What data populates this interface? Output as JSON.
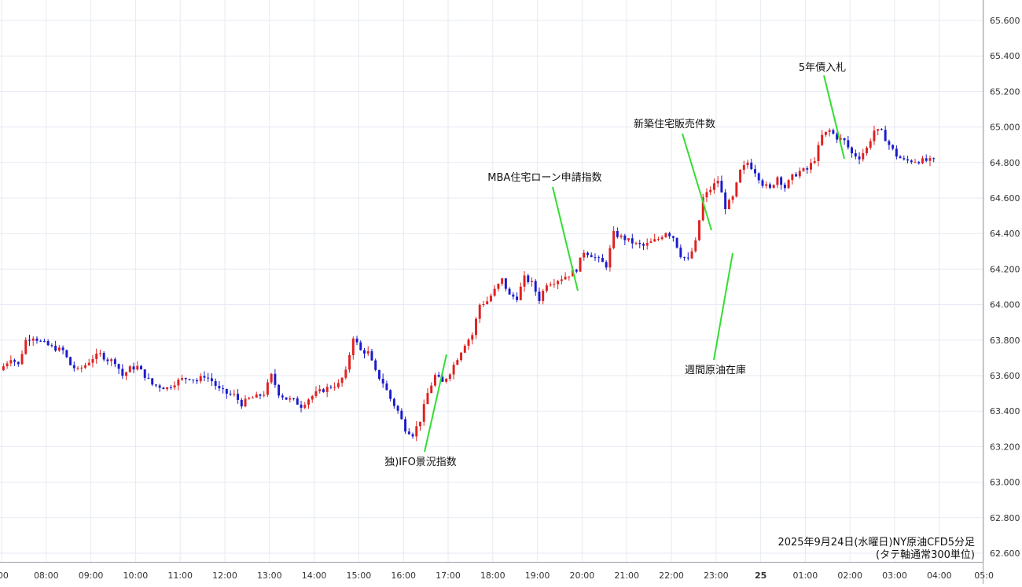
{
  "chart_data": {
    "type": "candlestick",
    "caption_line1": "2025年9月24日(水曜日)NY原油CFD5分足",
    "caption_line2": "(タテ軸通常300単位)",
    "y_axis": {
      "ticks": [
        "65.600",
        "65.400",
        "65.200",
        "65.000",
        "64.800",
        "64.600",
        "64.400",
        "64.200",
        "64.000",
        "63.800",
        "63.600",
        "63.400",
        "63.200",
        "63.000",
        "62.800",
        "62.600"
      ],
      "ylim": [
        62.56,
        65.68
      ],
      "position": "right"
    },
    "x_axis": {
      "ticks": [
        {
          "label": ":00",
          "bold": false
        },
        {
          "label": "08:00",
          "bold": false
        },
        {
          "label": "09:00",
          "bold": false
        },
        {
          "label": "10:00",
          "bold": false
        },
        {
          "label": "11:00",
          "bold": false
        },
        {
          "label": "12:00",
          "bold": false
        },
        {
          "label": "13:00",
          "bold": false
        },
        {
          "label": "14:00",
          "bold": false
        },
        {
          "label": "15:00",
          "bold": false
        },
        {
          "label": "16:00",
          "bold": false
        },
        {
          "label": "17:00",
          "bold": false
        },
        {
          "label": "18:00",
          "bold": false
        },
        {
          "label": "19:00",
          "bold": false
        },
        {
          "label": "20:00",
          "bold": false
        },
        {
          "label": "21:00",
          "bold": false
        },
        {
          "label": "22:00",
          "bold": false
        },
        {
          "label": "23:00",
          "bold": false
        },
        {
          "label": "25",
          "bold": true
        },
        {
          "label": "01:00",
          "bold": false
        },
        {
          "label": "02:00",
          "bold": false
        },
        {
          "label": "03:00",
          "bold": false
        },
        {
          "label": "04:00",
          "bold": false
        },
        {
          "label": "05:0",
          "bold": false
        }
      ]
    },
    "grid": true,
    "colors": {
      "up": "#e02020",
      "down": "#1a1acc",
      "annotation_line": "#33dd33",
      "grid": "#e6eaf2"
    },
    "candle_minutes": 5,
    "price_path": [
      [
        0,
        63.63
      ],
      [
        3,
        63.7
      ],
      [
        5,
        63.66
      ],
      [
        7,
        63.8
      ],
      [
        9,
        63.82
      ],
      [
        11,
        63.79
      ],
      [
        14,
        63.76
      ],
      [
        17,
        63.74
      ],
      [
        19,
        63.66
      ],
      [
        21,
        63.63
      ],
      [
        23,
        63.66
      ],
      [
        25,
        63.7
      ],
      [
        27,
        63.72
      ],
      [
        29,
        63.69
      ],
      [
        31,
        63.68
      ],
      [
        33,
        63.6
      ],
      [
        35,
        63.64
      ],
      [
        37,
        63.65
      ],
      [
        39,
        63.6
      ],
      [
        41,
        63.55
      ],
      [
        43,
        63.54
      ],
      [
        45,
        63.53
      ],
      [
        47,
        63.56
      ],
      [
        49,
        63.58
      ],
      [
        51,
        63.59
      ],
      [
        53,
        63.57
      ],
      [
        55,
        63.6
      ],
      [
        57,
        63.57
      ],
      [
        59,
        63.52
      ],
      [
        61,
        63.5
      ],
      [
        63,
        63.49
      ],
      [
        65,
        63.44
      ],
      [
        67,
        63.47
      ],
      [
        69,
        63.48
      ],
      [
        71,
        63.5
      ],
      [
        73,
        63.6
      ],
      [
        75,
        63.5
      ],
      [
        77,
        63.47
      ],
      [
        79,
        63.46
      ],
      [
        81,
        63.43
      ],
      [
        83,
        63.47
      ],
      [
        85,
        63.5
      ],
      [
        87,
        63.52
      ],
      [
        89,
        63.54
      ],
      [
        91,
        63.55
      ],
      [
        93,
        63.62
      ],
      [
        95,
        63.82
      ],
      [
        97,
        63.74
      ],
      [
        99,
        63.73
      ],
      [
        101,
        63.62
      ],
      [
        103,
        63.56
      ],
      [
        105,
        63.47
      ],
      [
        107,
        63.4
      ],
      [
        109,
        63.3
      ],
      [
        111,
        63.27
      ],
      [
        113,
        63.35
      ],
      [
        115,
        63.5
      ],
      [
        117,
        63.6
      ],
      [
        119,
        63.56
      ],
      [
        121,
        63.62
      ],
      [
        123,
        63.7
      ],
      [
        125,
        63.78
      ],
      [
        127,
        63.83
      ],
      [
        129,
        64.0
      ],
      [
        131,
        64.02
      ],
      [
        133,
        64.08
      ],
      [
        135,
        64.14
      ],
      [
        137,
        64.05
      ],
      [
        139,
        64.04
      ],
      [
        141,
        64.15
      ],
      [
        143,
        64.12
      ],
      [
        145,
        64.03
      ],
      [
        147,
        64.12
      ],
      [
        149,
        64.13
      ],
      [
        151,
        64.15
      ],
      [
        153,
        64.17
      ],
      [
        155,
        64.2
      ],
      [
        157,
        64.3
      ],
      [
        159,
        64.28
      ],
      [
        161,
        64.25
      ],
      [
        163,
        64.22
      ],
      [
        165,
        64.4
      ],
      [
        167,
        64.38
      ],
      [
        169,
        64.36
      ],
      [
        171,
        64.34
      ],
      [
        173,
        64.33
      ],
      [
        175,
        64.35
      ],
      [
        177,
        64.37
      ],
      [
        179,
        64.41
      ],
      [
        181,
        64.38
      ],
      [
        183,
        64.28
      ],
      [
        185,
        64.25
      ],
      [
        187,
        64.35
      ],
      [
        189,
        64.6
      ],
      [
        191,
        64.65
      ],
      [
        193,
        64.7
      ],
      [
        195,
        64.55
      ],
      [
        197,
        64.6
      ],
      [
        199,
        64.75
      ],
      [
        201,
        64.8
      ],
      [
        203,
        64.75
      ],
      [
        205,
        64.68
      ],
      [
        207,
        64.65
      ],
      [
        209,
        64.72
      ],
      [
        211,
        64.66
      ],
      [
        213,
        64.72
      ],
      [
        215,
        64.75
      ],
      [
        217,
        64.76
      ],
      [
        219,
        64.82
      ],
      [
        221,
        64.95
      ],
      [
        223,
        64.98
      ],
      [
        225,
        64.94
      ],
      [
        227,
        64.92
      ],
      [
        229,
        64.85
      ],
      [
        231,
        64.83
      ],
      [
        233,
        64.88
      ],
      [
        235,
        64.98
      ],
      [
        237,
        64.97
      ],
      [
        239,
        64.9
      ],
      [
        241,
        64.84
      ],
      [
        243,
        64.81
      ],
      [
        245,
        64.81
      ],
      [
        247,
        64.81
      ],
      [
        251,
        64.81
      ]
    ],
    "annotations": [
      {
        "text": "独)IFO景況指数"
      },
      {
        "text": "MBA住宅ローン申請指数"
      },
      {
        "text": "週間原油在庫"
      },
      {
        "text": "新築住宅販売件数"
      },
      {
        "text": "5年債入札"
      }
    ]
  }
}
